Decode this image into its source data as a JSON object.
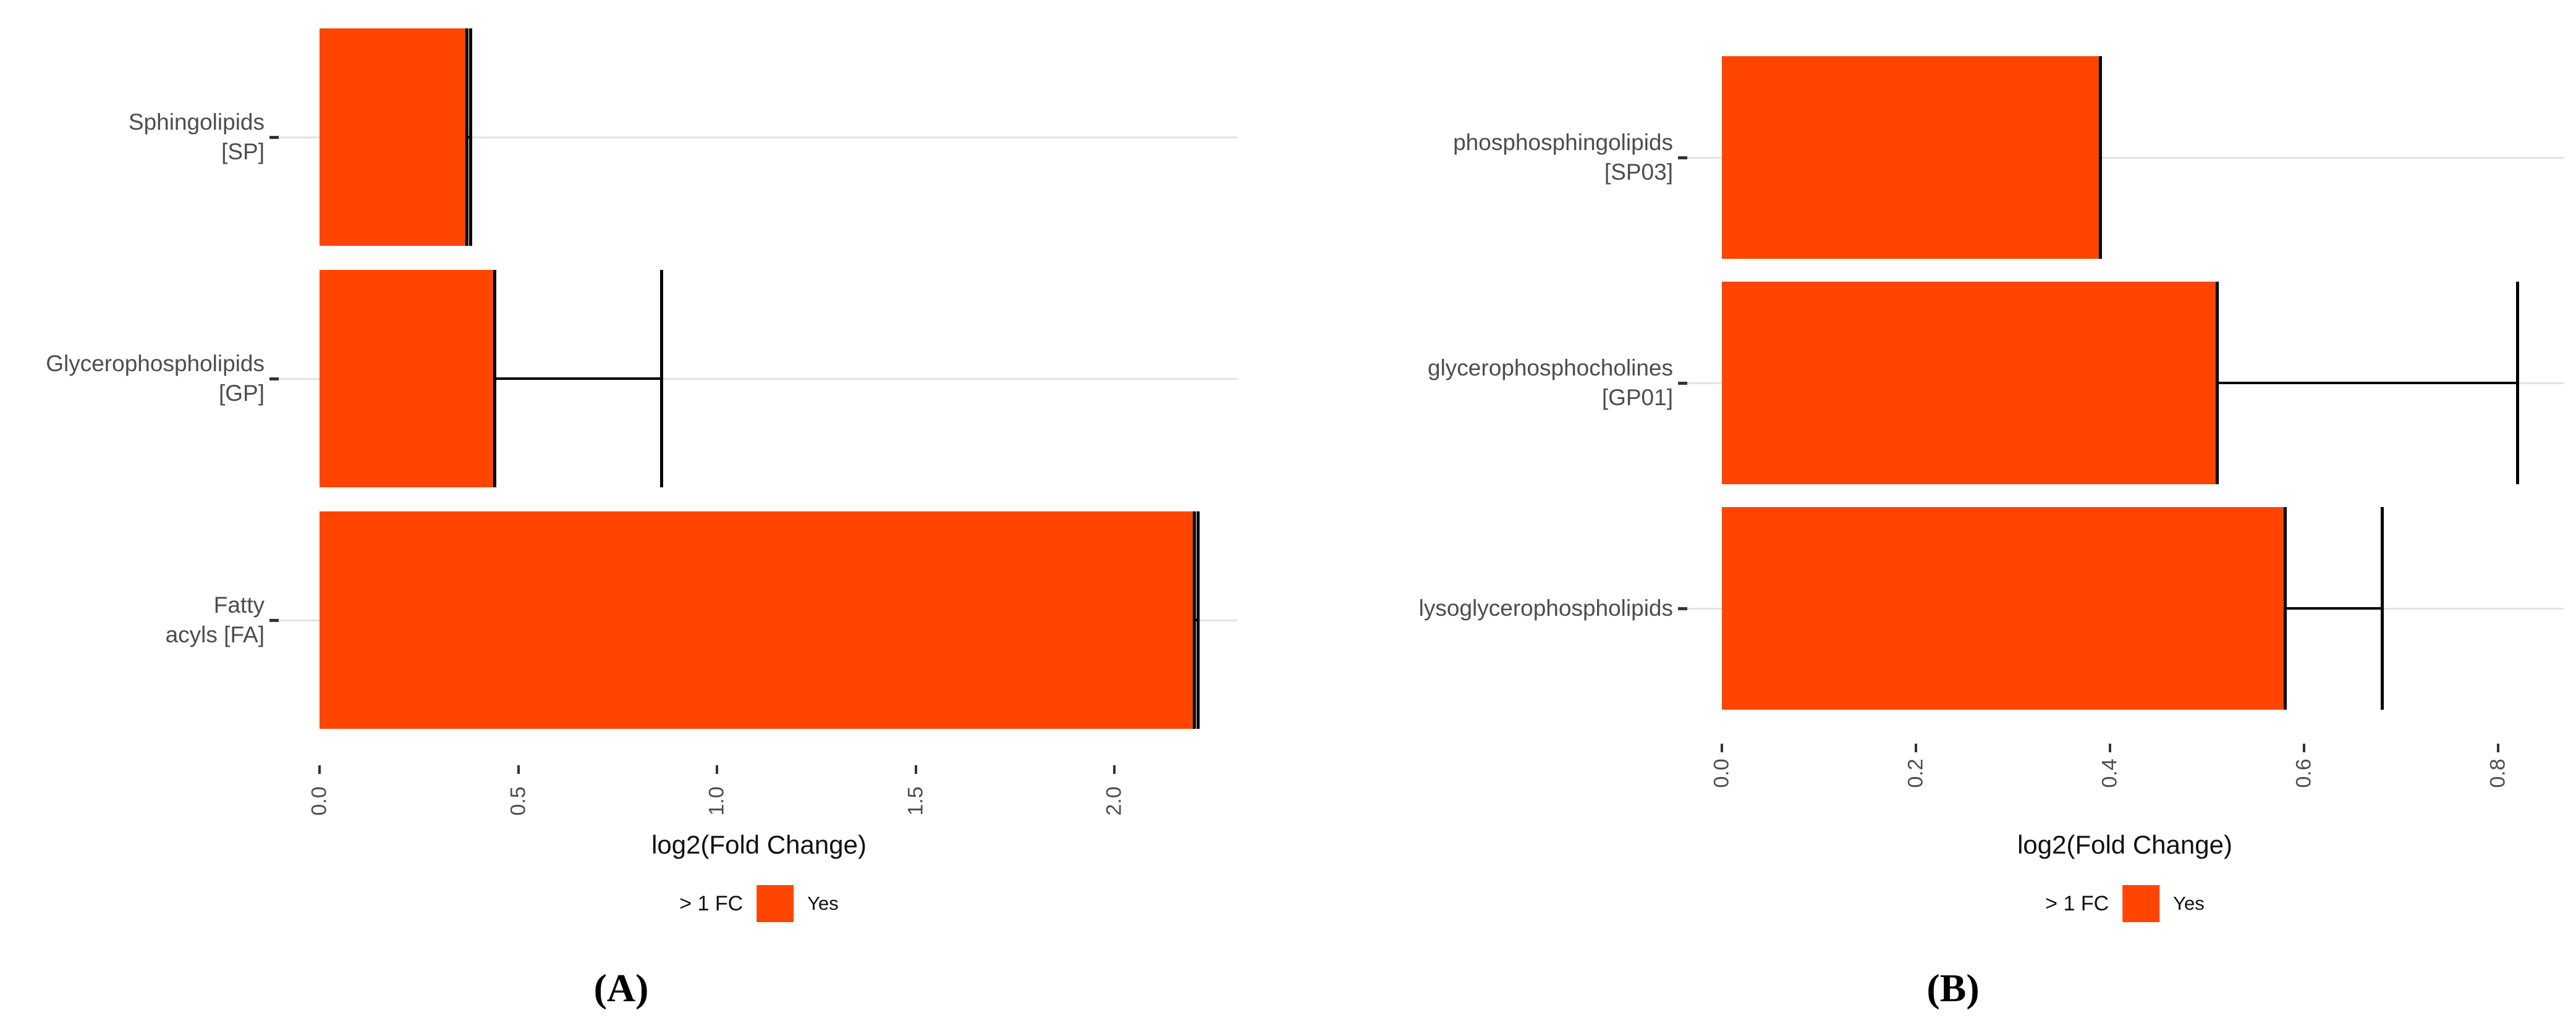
{
  "figure": {
    "background": "#ffffff",
    "description": "Two-panel horizontal bar chart of lipid category fold changes"
  },
  "chart_data": [
    {
      "id": "A",
      "type": "bar",
      "orientation": "horizontal",
      "caption": "(A)",
      "xlabel": "log2(Fold Change)",
      "categories": [
        "Sphingolipids [SP]",
        "Glycerophospholipids [GP]",
        "Fatty acyls [FA]"
      ],
      "category_lines": [
        [
          "Sphingolipids",
          "[SP]"
        ],
        [
          "Glycerophospholipids",
          "[GP]"
        ],
        [
          "Fatty",
          "acyls [FA]"
        ]
      ],
      "values": [
        0.37,
        0.44,
        2.2
      ],
      "error_upper": [
        0.38,
        0.86,
        2.21
      ],
      "xticks": [
        0,
        0.5,
        1,
        1.5,
        2
      ],
      "xtick_labels": [
        "0.0",
        "0.5",
        "1.0",
        "1.5",
        "2.0"
      ],
      "xlim": [
        -0.1,
        2.31
      ],
      "bar_color": "#FF4500",
      "grid": "horizontal category gridlines only",
      "legend": {
        "title": "> 1 FC",
        "position": "bottom",
        "entries": [
          {
            "label": "Yes",
            "color": "#FF4500"
          }
        ]
      }
    },
    {
      "id": "B",
      "type": "bar",
      "orientation": "horizontal",
      "caption": "(B)",
      "xlabel": "log2(Fold Change)",
      "categories": [
        "phosphosphingolipids [SP03]",
        "glycerophosphocholines [GP01]",
        "lysoglycerophospholipids"
      ],
      "category_lines": [
        [
          "phosphosphingolipids",
          "[SP03]"
        ],
        [
          "glycerophosphocholines",
          "[GP01]"
        ],
        [
          "lysoglycerophospholipids"
        ]
      ],
      "values": [
        0.39,
        0.51,
        0.58
      ],
      "error_upper": [
        0.39,
        0.82,
        0.68
      ],
      "xticks": [
        0,
        0.2,
        0.4,
        0.6,
        0.8
      ],
      "xtick_labels": [
        "0.0",
        "0.2",
        "0.4",
        "0.6",
        "0.8"
      ],
      "xlim": [
        -0.04,
        0.87
      ],
      "bar_color": "#FF4500",
      "grid": "horizontal category gridlines only",
      "legend": {
        "title": "> 1 FC",
        "position": "bottom",
        "entries": [
          {
            "label": "Yes",
            "color": "#FF4500"
          }
        ]
      }
    }
  ]
}
